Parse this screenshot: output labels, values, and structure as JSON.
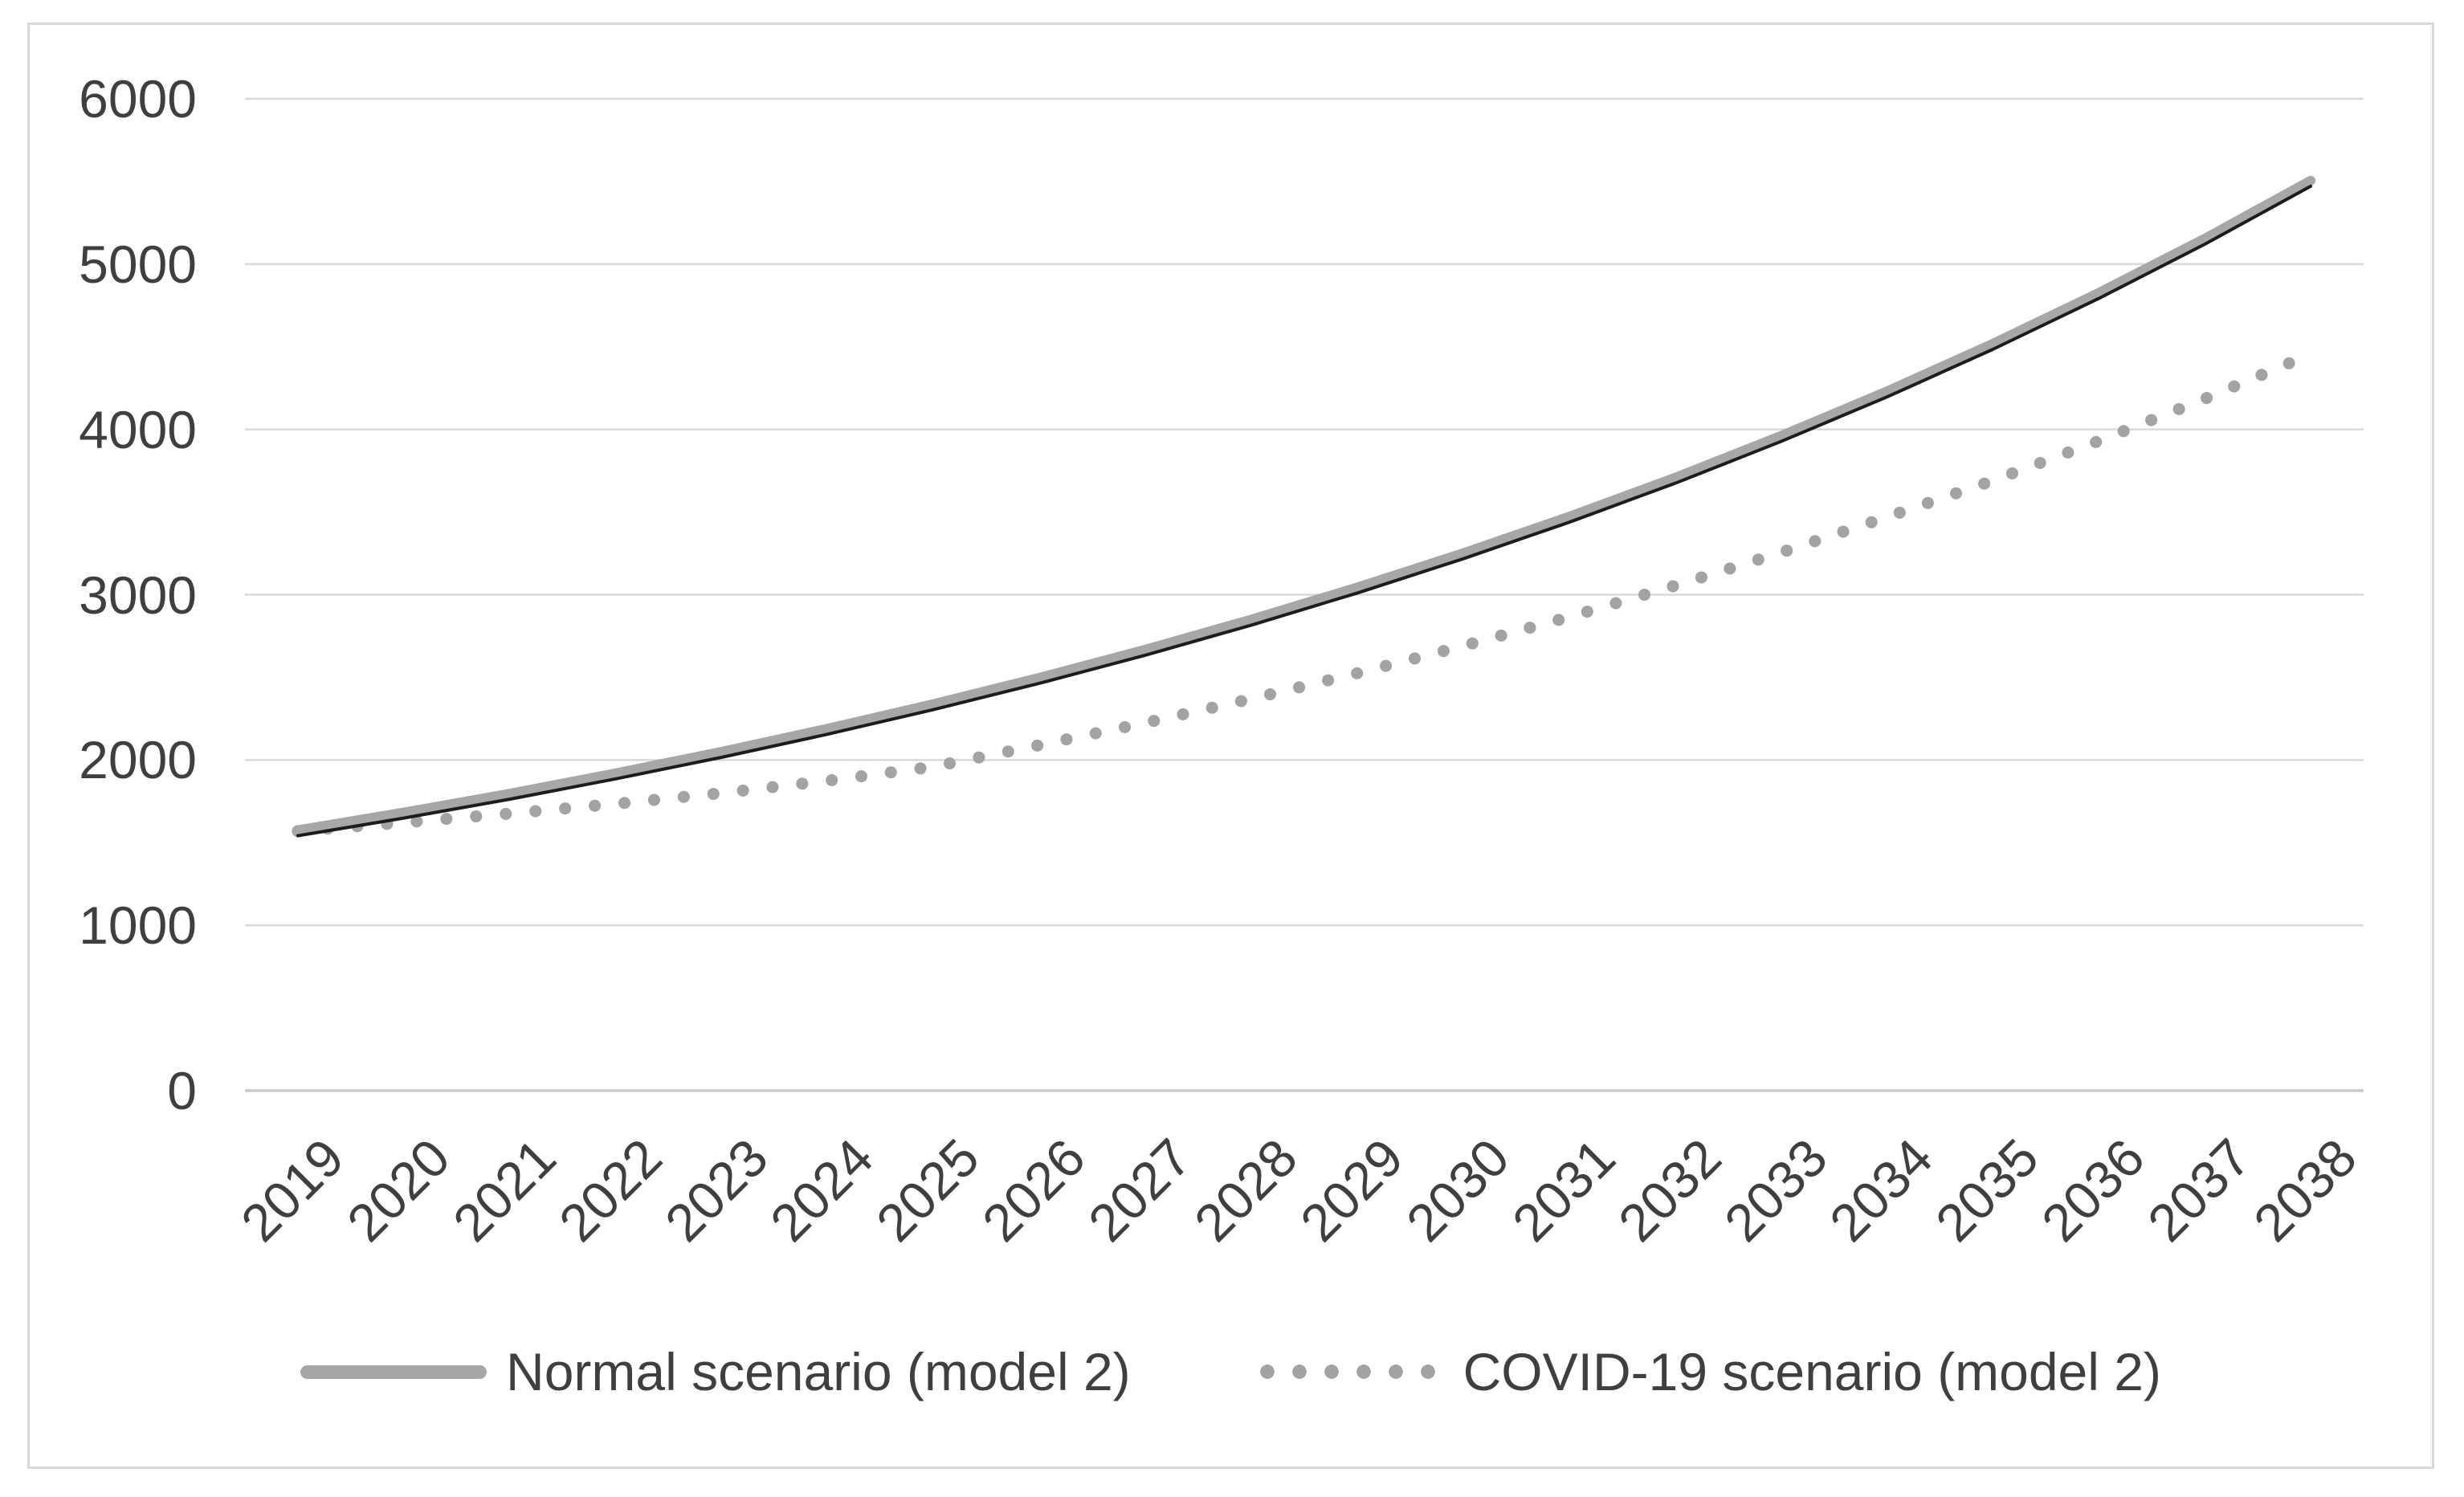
{
  "chart_data": {
    "type": "line",
    "title": "",
    "xlabel": "",
    "ylabel": "",
    "x": [
      2019,
      2020,
      2021,
      2022,
      2023,
      2024,
      2025,
      2026,
      2027,
      2028,
      2029,
      2030,
      2031,
      2032,
      2033,
      2034,
      2035,
      2036,
      2037,
      2038
    ],
    "series": [
      {
        "name": "Normal scenario (model 2)",
        "style": "solid thick gray line with thin dark lower edge",
        "values": [
          1576,
          1683,
          1797,
          1920,
          2050,
          2190,
          2339,
          2498,
          2668,
          2850,
          3044,
          3251,
          3472,
          3708,
          3961,
          4230,
          4518,
          4826,
          5154,
          5505
        ]
      },
      {
        "name": "COVID-19 scenario (model 2)",
        "style": "round-dotted gray line",
        "values": [
          1570,
          1622,
          1676,
          1735,
          1800,
          1875,
          1960,
          2090,
          2225,
          2370,
          2525,
          2690,
          2865,
          3055,
          3255,
          3470,
          3690,
          3930,
          4185,
          4455
        ]
      }
    ],
    "ylim": [
      0,
      6000
    ],
    "yticks": [
      0,
      1000,
      2000,
      3000,
      4000,
      5000,
      6000
    ],
    "grid": true,
    "legend_position": "bottom-center"
  },
  "colors": {
    "normal_line": "#a7a7a7",
    "normal_line_edge": "#1c1c1c",
    "covid_dots": "#a3a3a3",
    "gridline": "#d9d9d9",
    "axis_line": "#c9c9c9",
    "tick_text": "#3f3f3f",
    "frame_border": "#d9d9d9",
    "background": "#ffffff"
  }
}
